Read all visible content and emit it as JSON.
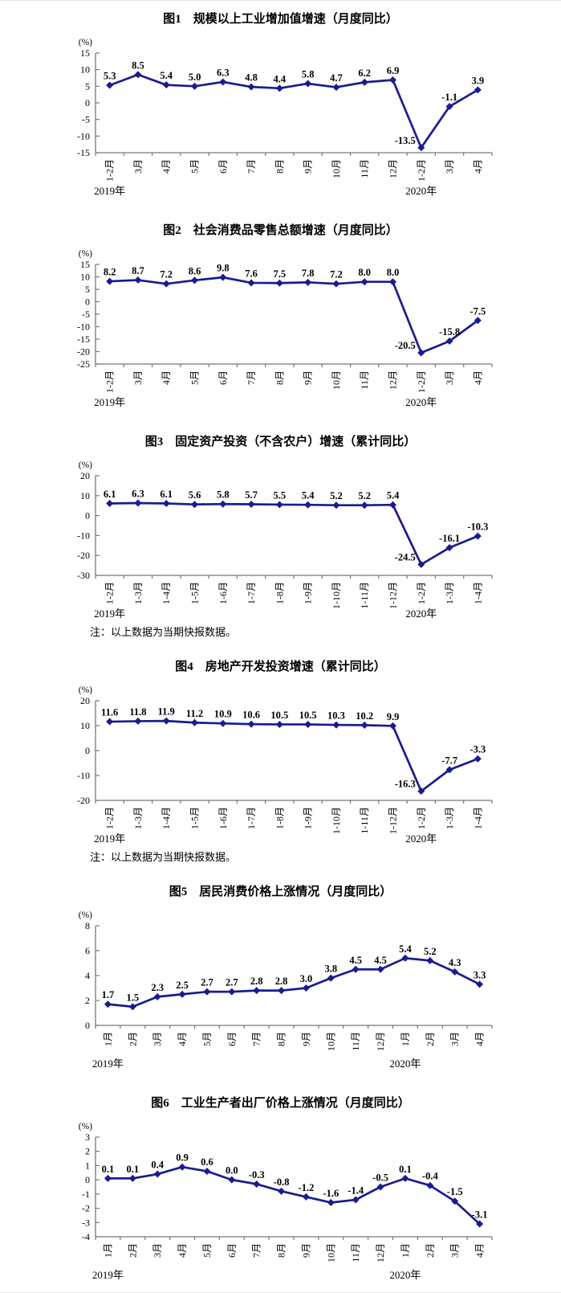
{
  "page": {
    "background": "#ffffff"
  },
  "style": {
    "line_color": "#1b1b8f",
    "marker_color": "#1b1b8f",
    "text_color": "#000000",
    "axis_color": "#777777"
  },
  "chart_data": [
    {
      "type": "line",
      "title": "图1　规模以上工业增加值增速（月度同比）",
      "unit_label": "(%)",
      "categories": [
        "1-2月",
        "3月",
        "4月",
        "5月",
        "6月",
        "7月",
        "8月",
        "9月",
        "10月",
        "11月",
        "12月",
        "1-2月",
        "3月",
        "4月"
      ],
      "values": [
        5.3,
        8.5,
        5.4,
        5.0,
        6.3,
        4.8,
        4.4,
        5.8,
        4.7,
        6.2,
        6.9,
        -13.5,
        -1.1,
        3.9
      ],
      "ylim": [
        -15,
        15
      ],
      "ytick_step": 5,
      "grid": false,
      "legend": "none",
      "year_labels": [
        {
          "text": "2019年",
          "index": 0
        },
        {
          "text": "2020年",
          "index": 11
        }
      ],
      "note": ""
    },
    {
      "type": "line",
      "title": "图2　社会消费品零售总额增速（月度同比）",
      "unit_label": "(%)",
      "categories": [
        "1-2月",
        "3月",
        "4月",
        "5月",
        "6月",
        "7月",
        "8月",
        "9月",
        "10月",
        "11月",
        "12月",
        "1-2月",
        "3月",
        "4月"
      ],
      "values": [
        8.2,
        8.7,
        7.2,
        8.6,
        9.8,
        7.6,
        7.5,
        7.8,
        7.2,
        8.0,
        8.0,
        -20.5,
        -15.8,
        -7.5
      ],
      "ylim": [
        -25,
        15
      ],
      "ytick_step": 5,
      "grid": false,
      "legend": "none",
      "year_labels": [
        {
          "text": "2019年",
          "index": 0
        },
        {
          "text": "2020年",
          "index": 11
        }
      ],
      "note": ""
    },
    {
      "type": "line",
      "title": "图3　固定资产投资（不含农户）增速（累计同比）",
      "unit_label": "(%)",
      "categories": [
        "1-2月",
        "1-3月",
        "1-4月",
        "1-5月",
        "1-6月",
        "1-7月",
        "1-8月",
        "1-9月",
        "1-10月",
        "1-11月",
        "1-12月",
        "1-2月",
        "1-3月",
        "1-4月"
      ],
      "values": [
        6.1,
        6.3,
        6.1,
        5.6,
        5.8,
        5.7,
        5.5,
        5.4,
        5.2,
        5.2,
        5.4,
        -24.5,
        -16.1,
        -10.3
      ],
      "ylim": [
        -30,
        20
      ],
      "ytick_step": 10,
      "grid": false,
      "legend": "none",
      "year_labels": [
        {
          "text": "2019年",
          "index": 0
        },
        {
          "text": "2020年",
          "index": 11
        }
      ],
      "note": "注：以上数据为当期快报数据。"
    },
    {
      "type": "line",
      "title": "图4　房地产开发投资增速（累计同比）",
      "unit_label": "(%)",
      "categories": [
        "1-2月",
        "1-3月",
        "1-4月",
        "1-5月",
        "1-6月",
        "1-7月",
        "1-8月",
        "1-9月",
        "1-10月",
        "1-11月",
        "1-12月",
        "1-2月",
        "1-3月",
        "1-4月"
      ],
      "values": [
        11.6,
        11.8,
        11.9,
        11.2,
        10.9,
        10.6,
        10.5,
        10.5,
        10.3,
        10.2,
        9.9,
        -16.3,
        -7.7,
        -3.3
      ],
      "ylim": [
        -20,
        20
      ],
      "ytick_step": 10,
      "grid": false,
      "legend": "none",
      "year_labels": [
        {
          "text": "2019年",
          "index": 0
        },
        {
          "text": "2020年",
          "index": 11
        }
      ],
      "note": "注：以上数据为当期快报数据。"
    },
    {
      "type": "line",
      "title": "图5　居民消费价格上涨情况（月度同比）",
      "unit_label": "(%)",
      "categories": [
        "1月",
        "2月",
        "3月",
        "4月",
        "5月",
        "6月",
        "7月",
        "8月",
        "9月",
        "10月",
        "11月",
        "12月",
        "1月",
        "2月",
        "3月",
        "4月"
      ],
      "values": [
        1.7,
        1.5,
        2.3,
        2.5,
        2.7,
        2.7,
        2.8,
        2.8,
        3.0,
        3.8,
        4.5,
        4.5,
        5.4,
        5.2,
        4.3,
        3.3
      ],
      "ylim": [
        0,
        8
      ],
      "ytick_step": 2,
      "grid": false,
      "legend": "none",
      "year_labels": [
        {
          "text": "2019年",
          "index": 0
        },
        {
          "text": "2020年",
          "index": 12
        }
      ],
      "note": ""
    },
    {
      "type": "line",
      "title": "图6　工业生产者出厂价格上涨情况（月度同比）",
      "unit_label": "(%)",
      "categories": [
        "1月",
        "2月",
        "3月",
        "4月",
        "5月",
        "6月",
        "7月",
        "8月",
        "9月",
        "10月",
        "11月",
        "12月",
        "1月",
        "2月",
        "3月",
        "4月"
      ],
      "values": [
        0.1,
        0.1,
        0.4,
        0.9,
        0.6,
        0.0,
        -0.3,
        -0.8,
        -1.2,
        -1.6,
        -1.4,
        -0.5,
        0.1,
        -0.4,
        -1.5,
        -3.1
      ],
      "ylim": [
        -4,
        3
      ],
      "ytick_step": 1,
      "grid": false,
      "legend": "none",
      "year_labels": [
        {
          "text": "2019年",
          "index": 0
        },
        {
          "text": "2020年",
          "index": 12
        }
      ],
      "note": ""
    }
  ]
}
